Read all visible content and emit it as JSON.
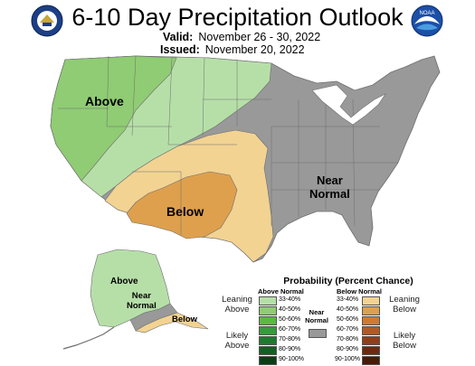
{
  "title": "6-10 Day Precipitation Outlook",
  "valid": {
    "label": "Valid:",
    "value": "November 26 - 30, 2022"
  },
  "issued": {
    "label": "Issued:",
    "value": "November 20, 2022"
  },
  "logos": {
    "left": "noaa-cpc-seal-icon",
    "right": "noaa-logo-icon",
    "noaa_text": "NOAA"
  },
  "colors": {
    "above_33_40": "#b6dfa8",
    "above_40_50": "#8fcc73",
    "above_50_60": "#5ab844",
    "above_60_70": "#369b3c",
    "above_70_80": "#1e7a2f",
    "above_80_90": "#155e24",
    "above_90_100": "#0c3e16",
    "below_33_40": "#f2d392",
    "below_40_50": "#dea04d",
    "below_50_60": "#cf7a32",
    "below_60_70": "#b25a25",
    "below_70_80": "#8e3f19",
    "below_80_90": "#6b2a10",
    "below_90_100": "#4a1a08",
    "near_normal": "#999999"
  },
  "map_labels": {
    "above_west": "Above",
    "below_sw": "Below",
    "near_normal_east_1": "Near",
    "near_normal_east_2": "Normal",
    "alaska_above": "Above",
    "alaska_near_1": "Near",
    "alaska_near_2": "Normal",
    "alaska_below": "Below"
  },
  "legend": {
    "title": "Probability (Percent Chance)",
    "above_header": "Above Normal",
    "below_header": "Below Normal",
    "near_header_1": "Near",
    "near_header_2": "Normal",
    "above_ranges": [
      "33-40%",
      "40-50%",
      "50-60%",
      "60-70%",
      "70-80%",
      "80-90%",
      "90-100%"
    ],
    "below_ranges": [
      "33-40%",
      "40-50%",
      "50-60%",
      "60-70%",
      "70-80%",
      "80-90%",
      "90-100%"
    ],
    "leaning_above_1": "Leaning",
    "leaning_above_2": "Above",
    "likely_above_1": "Likely",
    "likely_above_2": "Above",
    "leaning_below_1": "Leaning",
    "leaning_below_2": "Below",
    "likely_below_1": "Likely",
    "likely_below_2": "Below"
  }
}
